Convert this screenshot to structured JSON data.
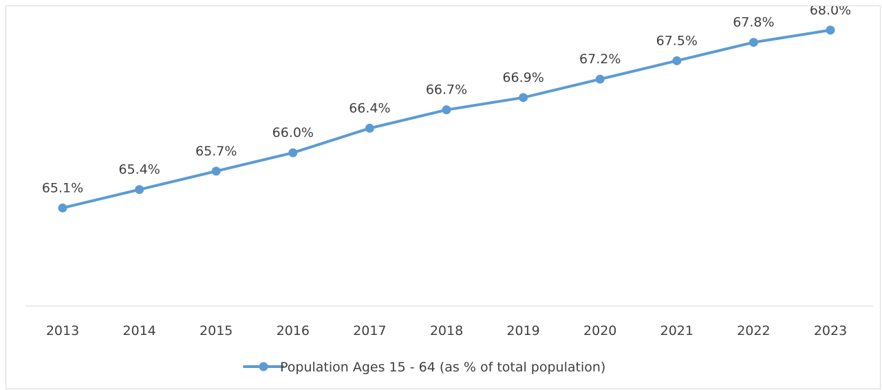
{
  "chart_data": {
    "type": "line",
    "title": "",
    "xlabel": "",
    "ylabel": "",
    "categories": [
      "2013",
      "2014",
      "2015",
      "2016",
      "2017",
      "2018",
      "2019",
      "2020",
      "2021",
      "2022",
      "2023"
    ],
    "series": [
      {
        "name": "Population Ages 15 - 64 (as % of total population)",
        "values": [
          65.1,
          65.4,
          65.7,
          66.0,
          66.4,
          66.7,
          66.9,
          67.2,
          67.5,
          67.8,
          68.0
        ],
        "data_labels": [
          "65.1%",
          "65.4%",
          "65.7%",
          "66.0%",
          "66.4%",
          "66.7%",
          "66.9%",
          "67.2%",
          "67.5%",
          "67.8%",
          "68.0%"
        ],
        "color": "#5b9bd5"
      }
    ],
    "ylim": [
      63.5,
      68.3
    ],
    "grid": false,
    "legend_position": "bottom",
    "axis_color": "#d9d9d9",
    "text_color": "#404040"
  }
}
